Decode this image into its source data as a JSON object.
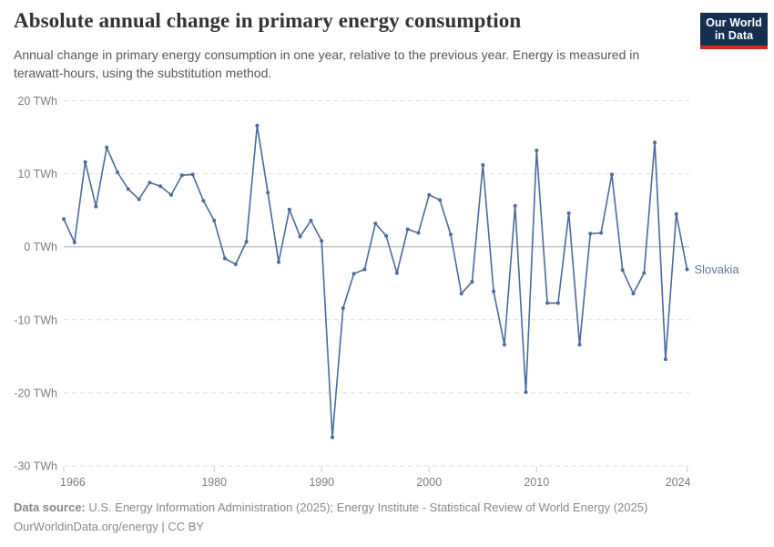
{
  "header": {
    "title": "Absolute annual change in primary energy consumption",
    "subtitle": "Annual change in primary energy consumption in one year, relative to the previous year. Energy is measured in terawatt-hours, using the substitution method.",
    "logo": {
      "line1": "Our World",
      "line2": "in Data",
      "bg_color": "#15304f",
      "stripe_color": "#cb2d24"
    }
  },
  "chart_data": {
    "type": "line",
    "title": "Absolute annual change in primary energy consumption",
    "xlabel": "",
    "ylabel": "TWh",
    "xlim": [
      1966,
      2024
    ],
    "ylim": [
      -30,
      20
    ],
    "x_ticks": [
      1966,
      1980,
      1990,
      2000,
      2010,
      2024
    ],
    "y_ticks": [
      20,
      10,
      0,
      -10,
      -20,
      -30
    ],
    "y_tick_suffix": " TWh",
    "grid": "horizontal-dashed",
    "legend": "end-of-line-label",
    "colors": {
      "grid": "#dedede",
      "zero_line": "#a8a8a8",
      "axis_tick": "#c8c8c8",
      "axis_label": "#7d7d7d"
    },
    "series": [
      {
        "name": "Slovakia",
        "color": "#4C6A9C",
        "label_color": "#5e7aa0",
        "years": [
          1966,
          1967,
          1968,
          1969,
          1970,
          1971,
          1972,
          1973,
          1974,
          1975,
          1976,
          1977,
          1978,
          1979,
          1980,
          1981,
          1982,
          1983,
          1984,
          1985,
          1986,
          1987,
          1988,
          1989,
          1990,
          1991,
          1992,
          1993,
          1994,
          1995,
          1996,
          1997,
          1998,
          1999,
          2000,
          2001,
          2002,
          2003,
          2004,
          2005,
          2006,
          2007,
          2008,
          2009,
          2010,
          2011,
          2012,
          2013,
          2014,
          2015,
          2016,
          2017,
          2018,
          2019,
          2020,
          2021,
          2022,
          2023,
          2024
        ],
        "values": [
          3.8,
          0.6,
          11.6,
          5.5,
          13.6,
          10.2,
          7.9,
          6.5,
          8.8,
          8.3,
          7.1,
          9.8,
          9.9,
          6.3,
          3.6,
          -1.6,
          -2.4,
          0.7,
          16.6,
          7.4,
          -2.1,
          5.1,
          1.4,
          3.6,
          0.8,
          -26.1,
          -8.4,
          -3.7,
          -3.1,
          3.2,
          1.5,
          -3.6,
          2.4,
          1.9,
          7.1,
          6.4,
          1.7,
          -6.4,
          -4.8,
          11.2,
          -6.1,
          -13.4,
          5.6,
          -19.9,
          13.2,
          -7.7,
          -7.7,
          4.6,
          -13.4,
          1.8,
          1.9,
          9.9,
          -3.2,
          -6.4,
          -3.6,
          14.3,
          -15.4,
          4.5,
          -3.1
        ]
      }
    ]
  },
  "footer": {
    "source_label": "Data source:",
    "source_text": "U.S. Energy Information Administration (2025); Energy Institute - Statistical Review of World Energy (2025)",
    "license_url": "OurWorldinData.org/energy",
    "license_suffix": " | CC BY"
  }
}
